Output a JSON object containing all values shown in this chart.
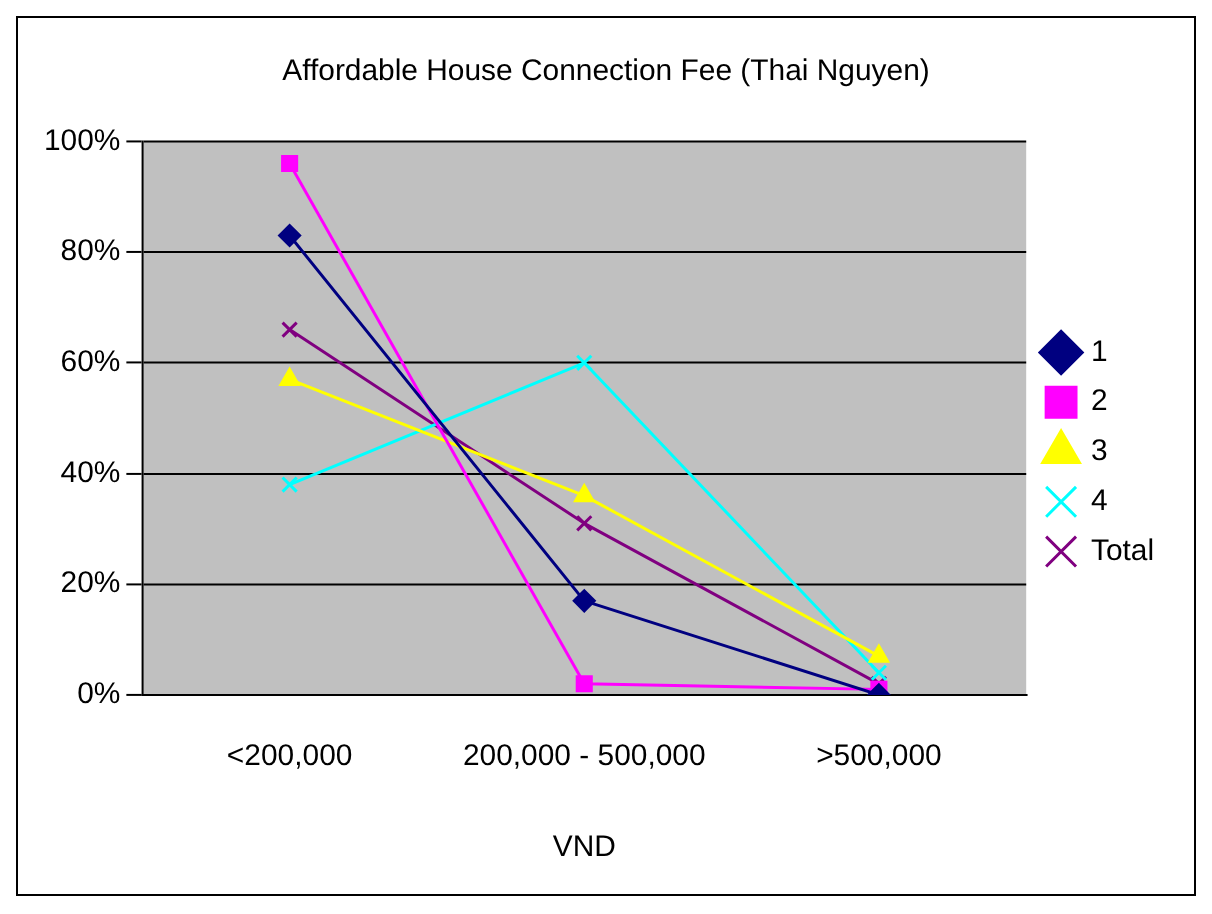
{
  "chart_data": {
    "type": "line",
    "title": "Affordable House Connection Fee (Thai Nguyen)",
    "xlabel": "VND",
    "categories": [
      "<200,000",
      "200,000 - 500,000",
      ">500,000"
    ],
    "series": [
      {
        "name": "1",
        "color": "#000080",
        "values": [
          83,
          17,
          0
        ],
        "marker": "diamond"
      },
      {
        "name": "2",
        "color": "#ff00ff",
        "values": [
          96,
          2,
          1
        ],
        "marker": "square"
      },
      {
        "name": "3",
        "color": "#ffff00",
        "values": [
          57,
          36,
          7
        ],
        "marker": "triangle"
      },
      {
        "name": "4",
        "color": "#00ffff",
        "values": [
          38,
          60,
          4
        ],
        "marker": "cross"
      },
      {
        "name": "Total",
        "color": "#800080",
        "values": [
          66,
          31,
          2
        ],
        "marker": "cross"
      }
    ],
    "ylim": [
      0,
      100
    ],
    "yticks": [
      {
        "value": 0,
        "label": "0%"
      },
      {
        "value": 20,
        "label": "20%"
      },
      {
        "value": 40,
        "label": "40%"
      },
      {
        "value": 60,
        "label": "60%"
      },
      {
        "value": 80,
        "label": "80%"
      },
      {
        "value": 100,
        "label": "100%"
      }
    ],
    "grid": "y",
    "legend": "right",
    "line_style": "solid"
  }
}
